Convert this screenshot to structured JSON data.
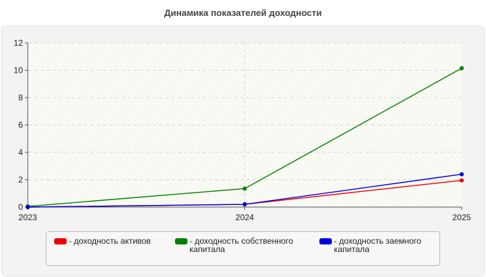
{
  "chart_data": {
    "type": "line",
    "title": "Динамика показателей доходности",
    "x": [
      "2023",
      "2024",
      "2025"
    ],
    "ylim": [
      0,
      12
    ],
    "yticks": [
      "0",
      "2",
      "4",
      "6",
      "8",
      "10",
      "12"
    ],
    "grid": true,
    "legend_position": "bottom",
    "series": [
      {
        "name": "- доходность активов",
        "color": "#ee0000",
        "values": [
          0.0,
          0.2,
          1.95
        ]
      },
      {
        "name": "- доходность собственного капитала",
        "color": "#008000",
        "values": [
          0.05,
          1.35,
          10.15
        ]
      },
      {
        "name": "- доходность заемного капитала",
        "color": "#0000dd",
        "values": [
          0.0,
          0.2,
          2.4
        ]
      }
    ]
  }
}
